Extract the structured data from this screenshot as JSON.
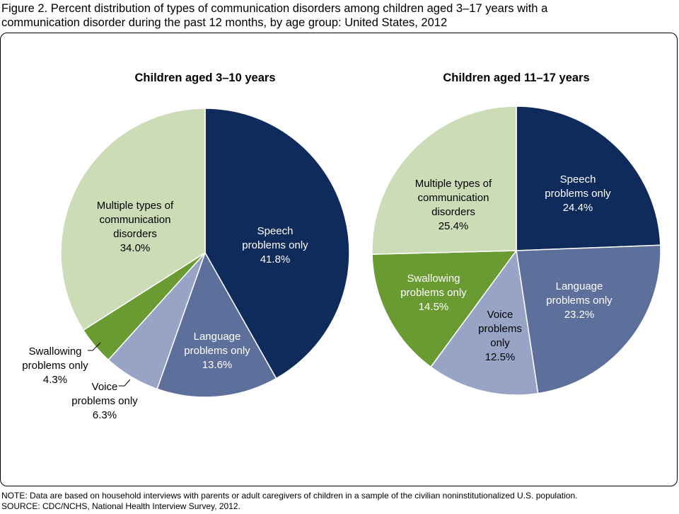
{
  "figure": {
    "title_line1": "Figure 2. Percent distribution of types of communication disorders among children aged 3–17 years with a",
    "title_line2": "communication disorder during the past 12 months, by age group: United States, 2012"
  },
  "colors": {
    "speech": "#0e2b5c",
    "language": "#5d6f9b",
    "voice": "#97a4c6",
    "swallowing": "#6a9a32",
    "multiple": "#ccdcb6"
  },
  "chart_data": [
    {
      "type": "pie",
      "title": "Children aged 3–10 years",
      "slices": [
        {
          "key": "speech",
          "label_lines": [
            "Speech",
            "problems only"
          ],
          "value": 41.8,
          "value_text": "41.8%"
        },
        {
          "key": "language",
          "label_lines": [
            "Language",
            "problems only"
          ],
          "value": 13.6,
          "value_text": "13.6%"
        },
        {
          "key": "voice",
          "label_lines": [
            "Voice",
            "problems only"
          ],
          "value": 6.3,
          "value_text": "6.3%"
        },
        {
          "key": "swallowing",
          "label_lines": [
            "Swallowing",
            "problems only"
          ],
          "value": 4.3,
          "value_text": "4.3%"
        },
        {
          "key": "multiple",
          "label_lines": [
            "Multiple types of",
            "communication",
            "disorders"
          ],
          "value": 34.0,
          "value_text": "34.0%"
        }
      ]
    },
    {
      "type": "pie",
      "title": "Children aged 11–17 years",
      "slices": [
        {
          "key": "speech",
          "label_lines": [
            "Speech",
            "problems only"
          ],
          "value": 24.4,
          "value_text": "24.4%"
        },
        {
          "key": "language",
          "label_lines": [
            "Language",
            "problems only"
          ],
          "value": 23.2,
          "value_text": "23.2%"
        },
        {
          "key": "voice",
          "label_lines": [
            "Voice",
            "problems",
            "only"
          ],
          "value": 12.5,
          "value_text": "12.5%"
        },
        {
          "key": "swallowing",
          "label_lines": [
            "Swallowing",
            "problems only"
          ],
          "value": 14.5,
          "value_text": "14.5%"
        },
        {
          "key": "multiple",
          "label_lines": [
            "Multiple types of",
            "communication",
            "disorders"
          ],
          "value": 25.4,
          "value_text": "25.4%"
        }
      ]
    }
  ],
  "footer": {
    "note": "NOTE: Data are based on household interviews with parents or adult caregivers of children in a sample of the civilian noninstitutionalized U.S. population.",
    "source": "SOURCE: CDC/NCHS, National Health Interview Survey, 2012."
  }
}
